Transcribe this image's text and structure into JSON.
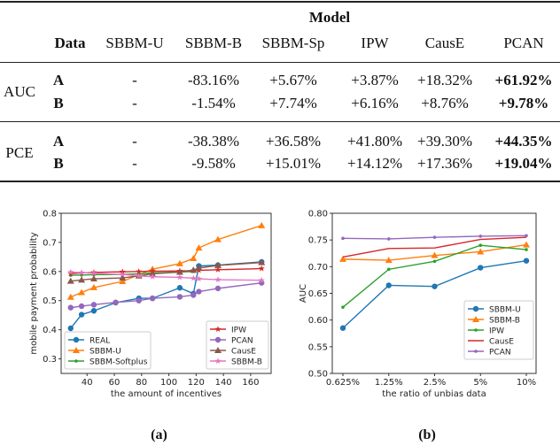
{
  "table": {
    "group_header": "Model",
    "columns": [
      "Data",
      "SBBM-U",
      "SBBM-B",
      "SBBM-Sp",
      "IPW",
      "CausE",
      "PCAN"
    ],
    "sections": [
      {
        "metric": "AUC",
        "rows": [
          {
            "data": "A",
            "values": [
              "-",
              "-83.16%",
              "+5.67%",
              "+3.87%",
              "+18.32%",
              "+61.92%"
            ]
          },
          {
            "data": "B",
            "values": [
              "-",
              "-1.54%",
              "+7.74%",
              "+6.16%",
              "+8.76%",
              "+9.78%"
            ]
          }
        ]
      },
      {
        "metric": "PCE",
        "rows": [
          {
            "data": "A",
            "values": [
              "-",
              "-38.38%",
              "+36.58%",
              "+41.80%",
              "+39.30%",
              "+44.35%"
            ]
          },
          {
            "data": "B",
            "values": [
              "-",
              "-9.58%",
              "+15.01%",
              "+14.12%",
              "+17.36%",
              "+19.04%"
            ]
          }
        ]
      }
    ],
    "bold_column": "PCAN"
  },
  "chart_data": [
    {
      "type": "line",
      "caption": "(a)",
      "xlabel": "the amount of incentives",
      "ylabel": "mobile payment probability",
      "xlim": [
        21,
        175
      ],
      "ylim": [
        0.25,
        0.8
      ],
      "xticks": [
        40,
        60,
        80,
        100,
        120,
        140,
        160
      ],
      "yticks": [
        0.3,
        0.4,
        0.5,
        0.6,
        0.7,
        0.8
      ],
      "legend_placement": [
        "lower-left",
        "lower-right"
      ],
      "series": [
        {
          "name": "REAL",
          "color": "#1f77b4",
          "marker": "circle",
          "x": [
            28,
            36,
            45,
            61,
            78,
            88,
            108,
            118,
            122,
            136,
            168
          ],
          "y": [
            0.405,
            0.452,
            0.465,
            0.493,
            0.508,
            0.508,
            0.544,
            0.524,
            0.619,
            0.622,
            0.633
          ]
        },
        {
          "name": "SBBM-U",
          "color": "#ff7f0e",
          "marker": "triangle",
          "x": [
            28,
            36,
            45,
            66,
            88,
            108,
            118,
            122,
            136,
            168
          ],
          "y": [
            0.512,
            0.528,
            0.545,
            0.566,
            0.608,
            0.627,
            0.645,
            0.681,
            0.71,
            0.758
          ]
        },
        {
          "name": "SBBM-Softplus",
          "color": "#2ca02c",
          "marker": "dot",
          "x": [
            28,
            36,
            45,
            66,
            78,
            88,
            108,
            118
          ],
          "y": [
            0.587,
            0.588,
            0.589,
            0.59,
            0.592,
            0.595,
            0.598,
            0.6
          ]
        },
        {
          "name": "IPW",
          "color": "#d62728",
          "marker": "star",
          "x": [
            28,
            36,
            45,
            66,
            78,
            88,
            108,
            118,
            122,
            136,
            168
          ],
          "y": [
            0.593,
            0.595,
            0.597,
            0.599,
            0.6,
            0.601,
            0.602,
            0.603,
            0.604,
            0.606,
            0.61
          ]
        },
        {
          "name": "PCAN",
          "color": "#9467bd",
          "marker": "circle",
          "x": [
            28,
            36,
            45,
            61,
            78,
            88,
            108,
            118,
            122,
            136,
            168
          ],
          "y": [
            0.476,
            0.481,
            0.486,
            0.494,
            0.5,
            0.508,
            0.513,
            0.519,
            0.531,
            0.542,
            0.561
          ]
        },
        {
          "name": "CausE",
          "color": "#8c564b",
          "marker": "triangle",
          "x": [
            28,
            36,
            45,
            66,
            78,
            88,
            108,
            118,
            122,
            136,
            168
          ],
          "y": [
            0.567,
            0.571,
            0.575,
            0.578,
            0.585,
            0.592,
            0.598,
            0.605,
            0.612,
            0.621,
            0.631
          ]
        },
        {
          "name": "SBBM-B",
          "color": "#e377c2",
          "marker": "star",
          "x": [
            28,
            36,
            45,
            66,
            78,
            88,
            108,
            118,
            122,
            136,
            168
          ],
          "y": [
            0.598,
            0.596,
            0.594,
            0.59,
            0.585,
            0.582,
            0.58,
            0.577,
            0.575,
            0.572,
            0.57
          ]
        }
      ]
    },
    {
      "type": "line",
      "caption": "(b)",
      "xlabel": "the ratio of unbias data",
      "ylabel": "AUC",
      "categories": [
        "0.625%",
        "1.25%",
        "2.5%",
        "5%",
        "10%"
      ],
      "ylim": [
        0.5,
        0.8
      ],
      "yticks": [
        0.5,
        0.55,
        0.6,
        0.65,
        0.7,
        0.75,
        0.8
      ],
      "legend_placement": "lower-right",
      "series": [
        {
          "name": "SBBM-U",
          "color": "#1f77b4",
          "marker": "circle",
          "values": [
            0.585,
            0.665,
            0.663,
            0.698,
            0.711
          ]
        },
        {
          "name": "SBBM-B",
          "color": "#ff7f0e",
          "marker": "triangle",
          "values": [
            0.714,
            0.712,
            0.721,
            0.728,
            0.741
          ]
        },
        {
          "name": "IPW",
          "color": "#2ca02c",
          "marker": "dot",
          "values": [
            0.624,
            0.695,
            0.71,
            0.74,
            0.732
          ]
        },
        {
          "name": "CausE",
          "color": "#d62728",
          "marker": "none",
          "values": [
            0.718,
            0.734,
            0.735,
            0.751,
            0.755
          ]
        },
        {
          "name": "PCAN",
          "color": "#9467bd",
          "marker": "dot",
          "values": [
            0.753,
            0.752,
            0.755,
            0.757,
            0.758
          ]
        }
      ]
    }
  ]
}
